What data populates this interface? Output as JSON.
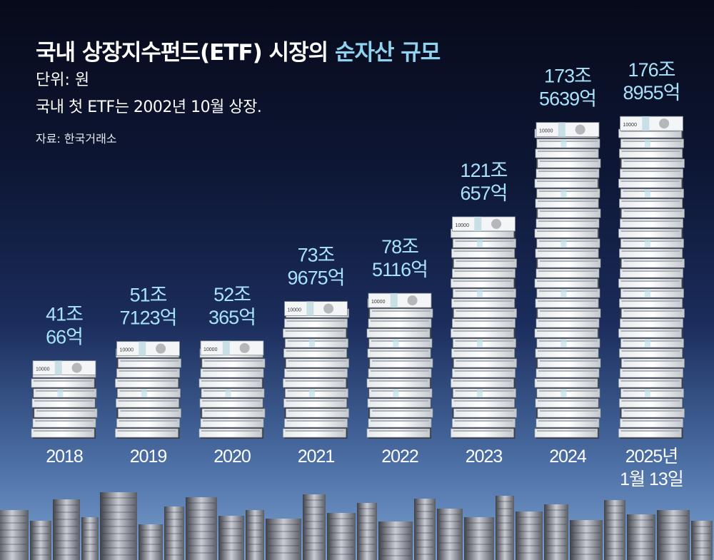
{
  "title": {
    "prefix": "국내 상장지수펀드(ETF) 시장의 ",
    "highlight": "순자산 규모"
  },
  "unit": "단위: 원",
  "note": "국내 첫 ETF는 2002년 10월 상장.",
  "source": "자료: 한국거래소",
  "banknote_label": "10000",
  "colors": {
    "value_label": "#a8e2fb",
    "title_highlight": "#8fd3f0",
    "text": "#ffffff"
  },
  "chart_data": {
    "type": "bar",
    "categories": [
      "2018",
      "2019",
      "2020",
      "2021",
      "2022",
      "2023",
      "2024",
      "2025년 1월 13일"
    ],
    "category_labels": [
      [
        "2018"
      ],
      [
        "2019"
      ],
      [
        "2020"
      ],
      [
        "2021"
      ],
      [
        "2022"
      ],
      [
        "2023"
      ],
      [
        "2024"
      ],
      [
        "2025년",
        "1월 13일"
      ]
    ],
    "values_krw_trillion": [
      41.0066,
      51.7123,
      52.0365,
      73.9675,
      78.5116,
      121.0657,
      173.5639,
      176.8955
    ],
    "value_labels": [
      [
        "41조",
        "66억"
      ],
      [
        "51조",
        "7123억"
      ],
      [
        "52조",
        "365억"
      ],
      [
        "73조",
        "9675억"
      ],
      [
        "78조",
        "5116억"
      ],
      [
        "121조",
        "657억"
      ],
      [
        "173조",
        "5639억"
      ],
      [
        "176조",
        "8955억"
      ]
    ],
    "unit": "원",
    "mark": "stacks of 10000 won banknotes"
  }
}
